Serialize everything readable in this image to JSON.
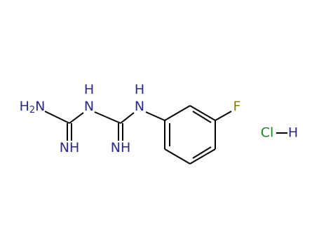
{
  "atoms": [
    {
      "parts": [
        "H",
        "2",
        "N"
      ]
    },
    {
      "parts": [
        "H"
      ]
    },
    {
      "parts": [
        "N"
      ]
    },
    {
      "parts": [
        "H"
      ]
    },
    {
      "parts": [
        "N"
      ]
    },
    {
      "parts": [
        "NH"
      ]
    },
    {
      "parts": [
        "NH"
      ]
    },
    {
      "parts": [
        "F"
      ]
    }
  ],
  "salt": {
    "chlorine": "Cl",
    "hydrogen": "H"
  }
}
